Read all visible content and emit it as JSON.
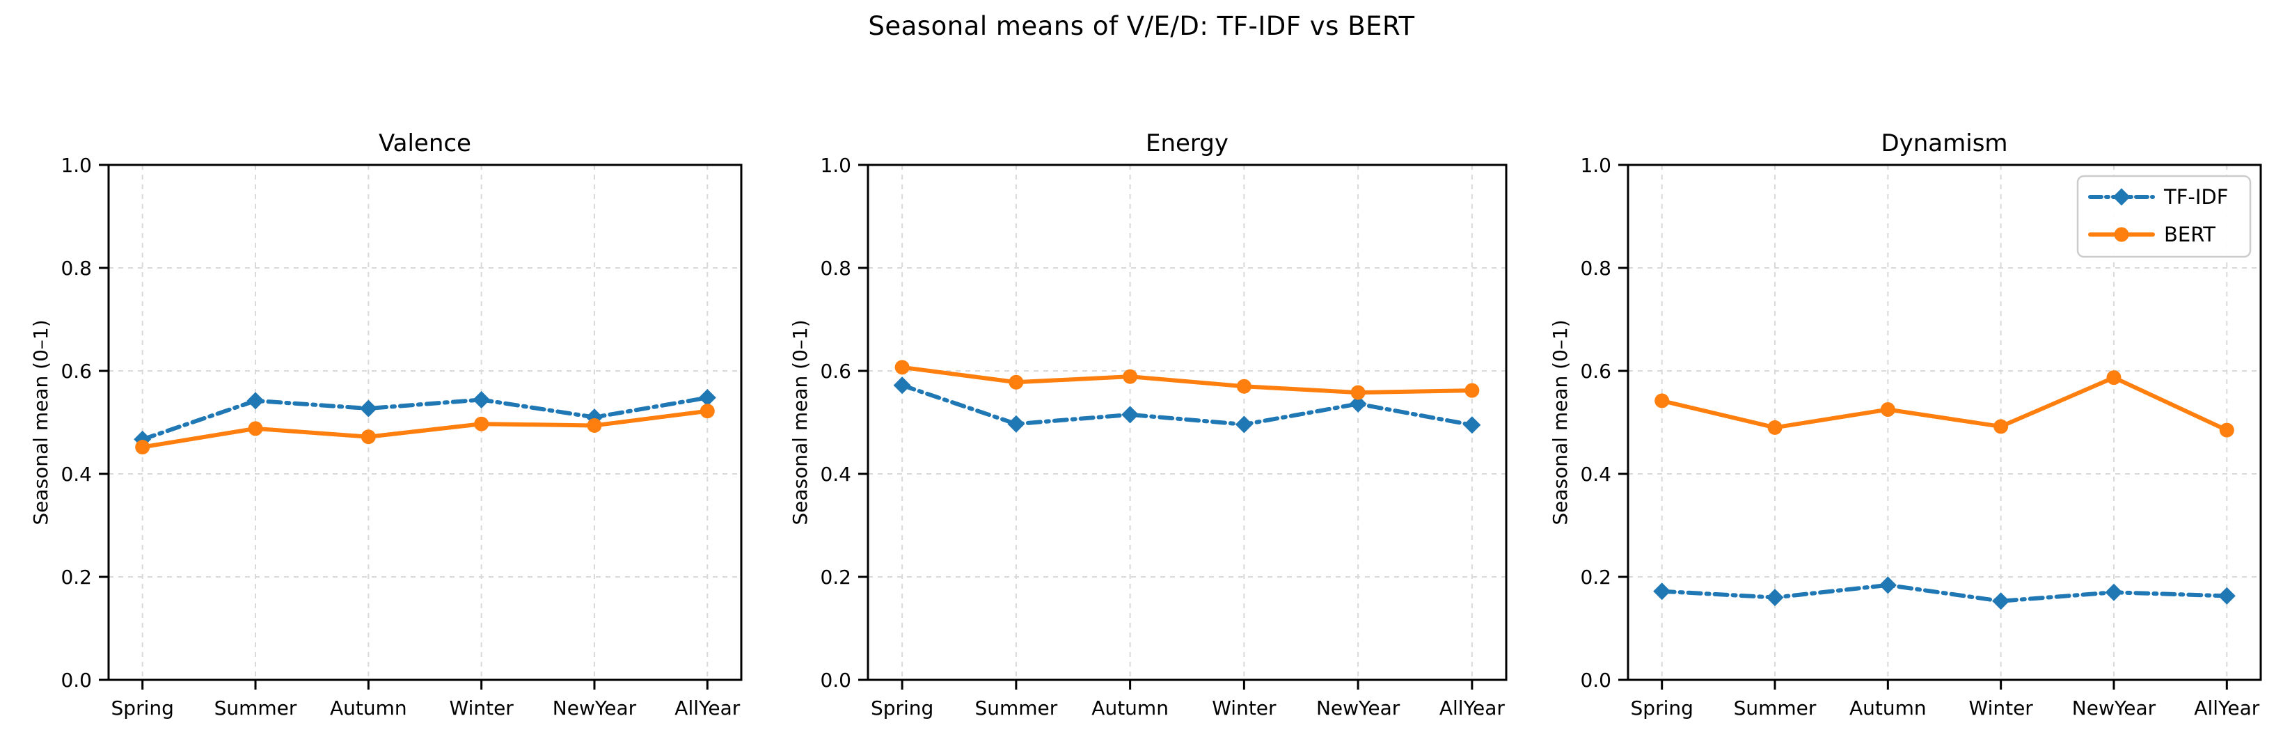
{
  "figure": {
    "suptitle": "Seasonal means of V/E/D: TF-IDF vs BERT",
    "background": "#ffffff",
    "text_color": "#000000"
  },
  "colors": {
    "tfidf": "#1f77b4",
    "bert": "#ff7f0e",
    "grid": "#d9d9d9",
    "axis": "#000000",
    "legend_border": "#cccccc"
  },
  "legend": {
    "position": "upper right",
    "entries": [
      {
        "label": "TF-IDF",
        "color": "#1f77b4",
        "linestyle": "dashdot",
        "marker": "diamond"
      },
      {
        "label": "BERT",
        "color": "#ff7f0e",
        "linestyle": "solid",
        "marker": "circle"
      }
    ]
  },
  "chart_data": [
    {
      "type": "line",
      "title": "Valence",
      "xlabel": "",
      "ylabel": "Seasonal mean (0–1)",
      "categories": [
        "Spring",
        "Summer",
        "Autumn",
        "Winter",
        "NewYear",
        "AllYear"
      ],
      "ylim": [
        0.0,
        1.0
      ],
      "yticks": [
        "0.0",
        "0.2",
        "0.4",
        "0.6",
        "0.8",
        "1.0"
      ],
      "grid": true,
      "legend_visible": false,
      "series": [
        {
          "name": "TF-IDF",
          "color": "#1f77b4",
          "linestyle": "dashdot",
          "marker": "diamond",
          "values": [
            0.467,
            0.542,
            0.527,
            0.544,
            0.51,
            0.548
          ]
        },
        {
          "name": "BERT",
          "color": "#ff7f0e",
          "linestyle": "solid",
          "marker": "circle",
          "values": [
            0.452,
            0.488,
            0.472,
            0.497,
            0.494,
            0.522
          ]
        }
      ]
    },
    {
      "type": "line",
      "title": "Energy",
      "xlabel": "",
      "ylabel": "Seasonal mean (0–1)",
      "categories": [
        "Spring",
        "Summer",
        "Autumn",
        "Winter",
        "NewYear",
        "AllYear"
      ],
      "ylim": [
        0.0,
        1.0
      ],
      "yticks": [
        "0.0",
        "0.2",
        "0.4",
        "0.6",
        "0.8",
        "1.0"
      ],
      "grid": true,
      "legend_visible": false,
      "series": [
        {
          "name": "TF-IDF",
          "color": "#1f77b4",
          "linestyle": "dashdot",
          "marker": "diamond",
          "values": [
            0.572,
            0.497,
            0.515,
            0.496,
            0.536,
            0.495
          ]
        },
        {
          "name": "BERT",
          "color": "#ff7f0e",
          "linestyle": "solid",
          "marker": "circle",
          "values": [
            0.607,
            0.578,
            0.589,
            0.57,
            0.558,
            0.562
          ]
        }
      ]
    },
    {
      "type": "line",
      "title": "Dynamism",
      "xlabel": "",
      "ylabel": "Seasonal mean (0–1)",
      "categories": [
        "Spring",
        "Summer",
        "Autumn",
        "Winter",
        "NewYear",
        "AllYear"
      ],
      "ylim": [
        0.0,
        1.0
      ],
      "yticks": [
        "0.0",
        "0.2",
        "0.4",
        "0.6",
        "0.8",
        "1.0"
      ],
      "grid": true,
      "legend_visible": true,
      "series": [
        {
          "name": "TF-IDF",
          "color": "#1f77b4",
          "linestyle": "dashdot",
          "marker": "diamond",
          "values": [
            0.172,
            0.16,
            0.184,
            0.153,
            0.17,
            0.163
          ]
        },
        {
          "name": "BERT",
          "color": "#ff7f0e",
          "linestyle": "solid",
          "marker": "circle",
          "values": [
            0.542,
            0.49,
            0.525,
            0.492,
            0.587,
            0.485
          ]
        }
      ]
    }
  ]
}
